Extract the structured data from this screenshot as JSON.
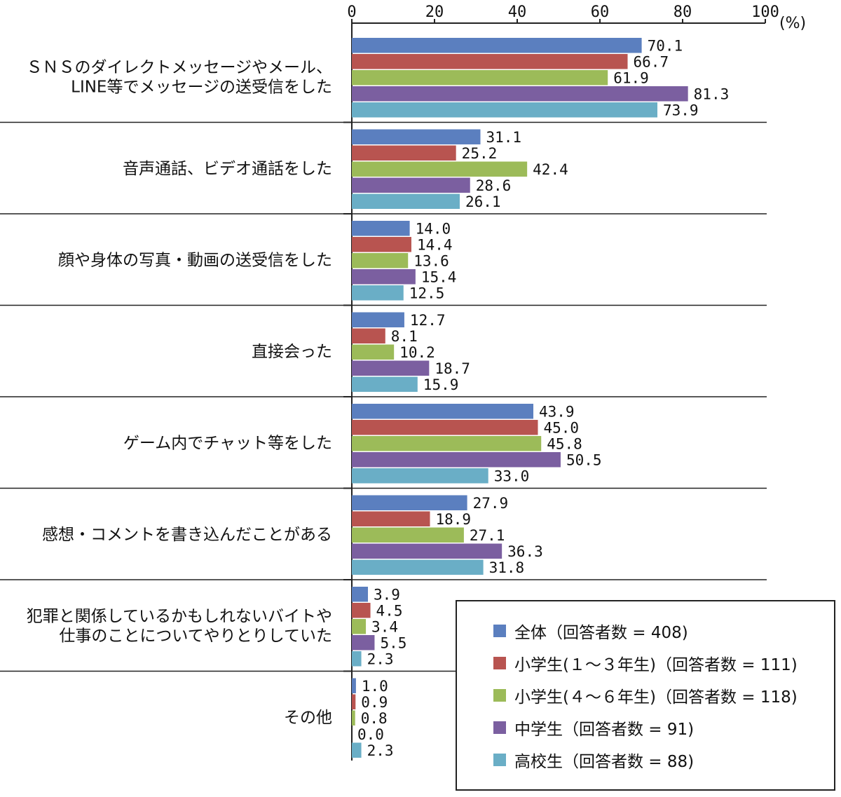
{
  "chart_data": {
    "type": "bar",
    "orientation": "horizontal",
    "unit_label": "(%)",
    "xlim": [
      0,
      100
    ],
    "x_ticks": [
      0,
      20,
      40,
      60,
      80,
      100
    ],
    "categories": [
      [
        "ＳＮＳのダイレクトメッセージやメール、",
        "LINE等でメッセージの送受信をした"
      ],
      [
        "音声通話、ビデオ通話をした"
      ],
      [
        "顔や身体の写真・動画の送受信をした"
      ],
      [
        "直接会った"
      ],
      [
        "ゲーム内でチャット等をした"
      ],
      [
        "感想・コメントを書き込んだことがある"
      ],
      [
        "犯罪と関係しているかもしれないバイトや",
        "仕事のことについてやりとりしていた"
      ],
      [
        "その他"
      ]
    ],
    "series": [
      {
        "name": "全体（回答者数 = 408)",
        "color": "#5b7fbf",
        "values": [
          70.1,
          31.1,
          14.0,
          12.7,
          43.9,
          27.9,
          3.9,
          1.0
        ]
      },
      {
        "name": "小学生(１～３年生)（回答者数 = 111)",
        "color": "#b85450",
        "values": [
          66.7,
          25.2,
          14.4,
          8.1,
          45.0,
          18.9,
          4.5,
          0.9
        ]
      },
      {
        "name": "小学生(４～６年生)（回答者数 = 118)",
        "color": "#9cbb59",
        "values": [
          61.9,
          42.4,
          13.6,
          10.2,
          45.8,
          27.1,
          3.4,
          0.8
        ]
      },
      {
        "name": "中学生（回答者数 = 91)",
        "color": "#7b5fa0",
        "values": [
          81.3,
          28.6,
          15.4,
          18.7,
          50.5,
          36.3,
          5.5,
          0.0
        ]
      },
      {
        "name": "高校生（回答者数 = 88)",
        "color": "#6aaec6",
        "values": [
          73.9,
          26.1,
          12.5,
          15.9,
          33.0,
          31.8,
          2.3,
          2.3
        ]
      }
    ],
    "legend_position": "bottom-right",
    "grid": false
  }
}
